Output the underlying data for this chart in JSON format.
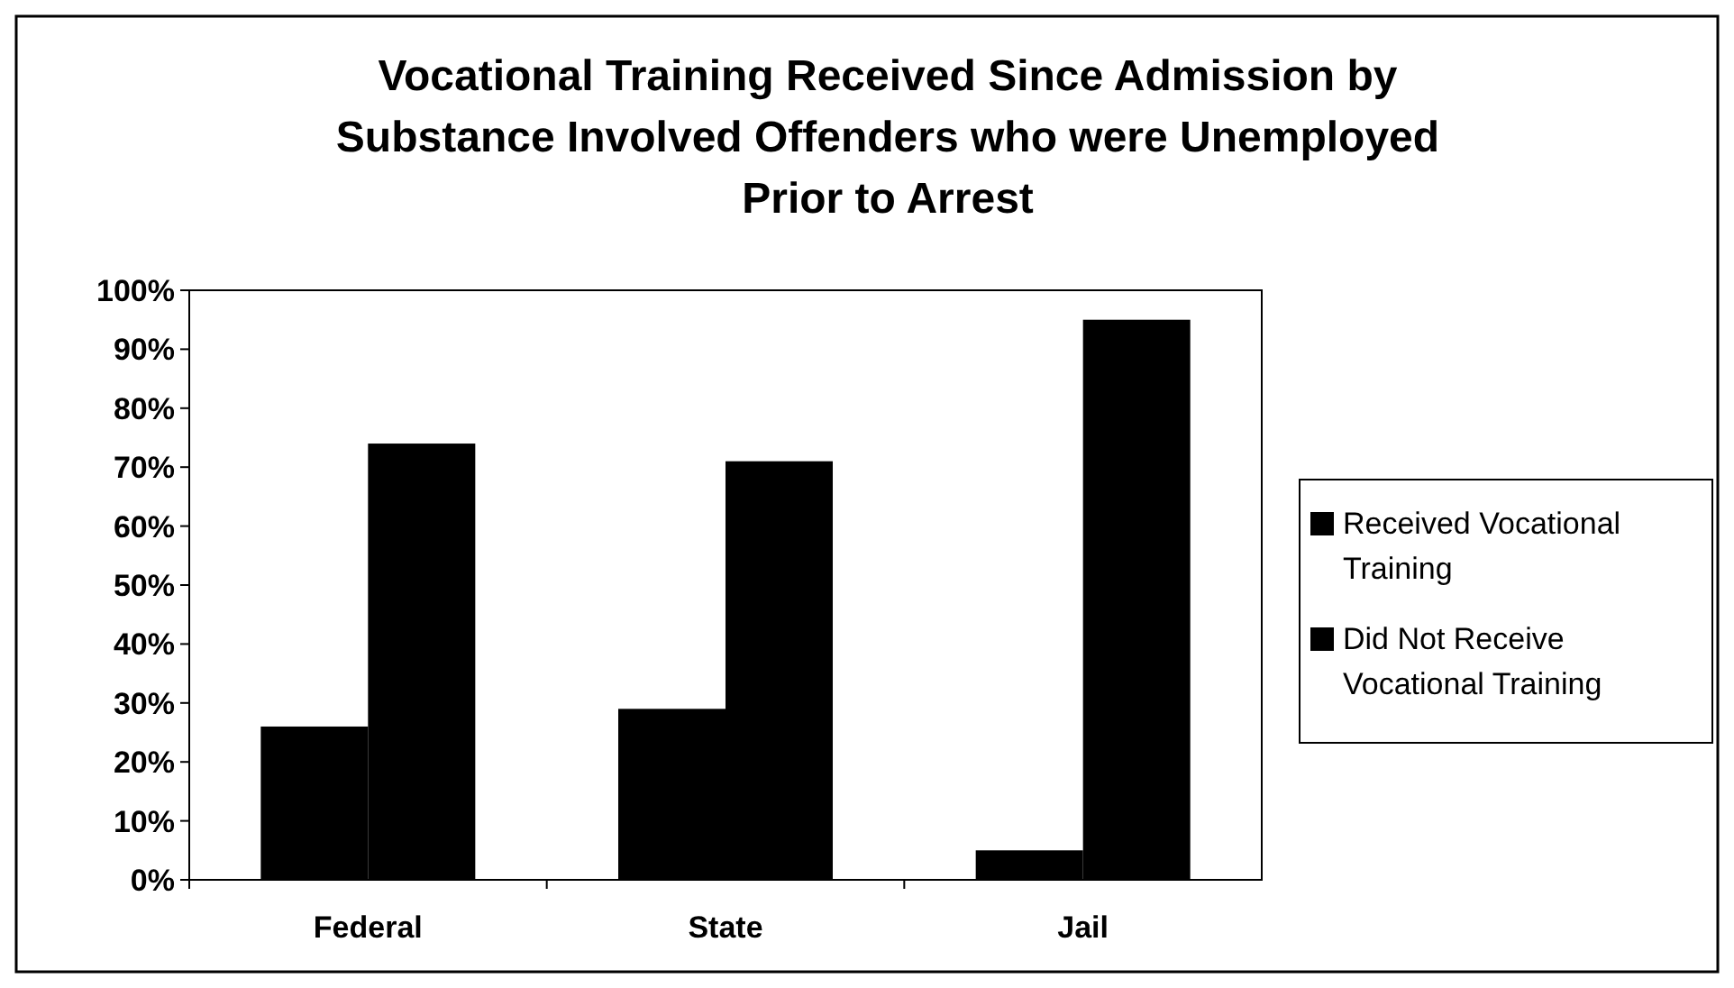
{
  "chart_data": {
    "type": "bar",
    "title": "Vocational Training Received Since Admission by Substance Involved Offenders who were Unemployed Prior to Arrest",
    "categories": [
      "Federal",
      "State",
      "Jail"
    ],
    "series": [
      {
        "name": "Received Vocational Training",
        "color": "#000000",
        "values": [
          26,
          29,
          5
        ]
      },
      {
        "name": "Did Not Receive Vocational Training",
        "color": "#000000",
        "values": [
          74,
          71,
          95
        ]
      }
    ],
    "ylim": [
      0,
      100
    ],
    "yticks": [
      {
        "value": 0,
        "label": "0%"
      },
      {
        "value": 10,
        "label": "10%"
      },
      {
        "value": 20,
        "label": "20%"
      },
      {
        "value": 30,
        "label": "30%"
      },
      {
        "value": 40,
        "label": "40%"
      },
      {
        "value": 50,
        "label": "50%"
      },
      {
        "value": 60,
        "label": "60%"
      },
      {
        "value": 70,
        "label": "70%"
      },
      {
        "value": 80,
        "label": "80%"
      },
      {
        "value": 90,
        "label": "90%"
      },
      {
        "value": 100,
        "label": "100%"
      }
    ],
    "grid": false,
    "legend": "right"
  }
}
